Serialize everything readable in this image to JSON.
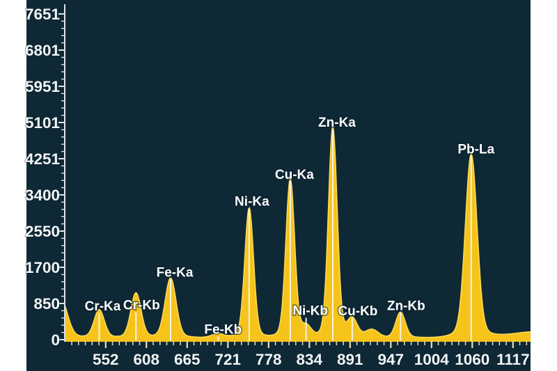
{
  "chart_data": {
    "type": "area",
    "title": "",
    "xlabel": "",
    "ylabel": "",
    "description": "XRF energy spectrum with labeled element emission peaks (counts vs channel)",
    "x_axis": {
      "tick_labels": [
        "552",
        "608",
        "665",
        "721",
        "778",
        "834",
        "891",
        "947",
        "1004",
        "1060",
        "1117"
      ],
      "tick_values": [
        552,
        608.5,
        665,
        721.5,
        778,
        834.5,
        891,
        947.5,
        1004,
        1060.5,
        1117
      ],
      "visible_range": [
        495,
        1141
      ],
      "minor_divisions_per_major": 6
    },
    "y_axis": {
      "tick_labels": [
        "0",
        "850",
        "1700",
        "2550",
        "3400",
        "4251",
        "5101",
        "5951",
        "6801",
        "7651"
      ],
      "tick_values": [
        0,
        850,
        1700,
        2550,
        3400,
        4250,
        5100,
        5950,
        6800,
        7650
      ],
      "range": [
        0,
        7651
      ],
      "minor_step": 170
    },
    "grid": false,
    "legend": false,
    "baseline_counts": 50,
    "peaks": [
      {
        "label": "Cr-Ka",
        "channel": 543,
        "counts": 670,
        "sigma": 7,
        "label_dx": 5,
        "label_dy": -6
      },
      {
        "label": "Cr-Kb",
        "channel": 594,
        "counts": 1050,
        "sigma": 7,
        "label_dx": 8,
        "label_dy": 17
      },
      {
        "label": "Fe-Ka",
        "channel": 642,
        "counts": 1380,
        "sigma": 7.5,
        "label_dx": 6,
        "label_dy": -9
      },
      {
        "label": "Fe-Kb",
        "channel": 708,
        "counts": 140,
        "sigma": 9,
        "label_dx": 7,
        "label_dy": -7
      },
      {
        "label": "Ni-Ka",
        "channel": 751,
        "counts": 2950,
        "sigma": 6,
        "label_dx": 4,
        "label_dy": -10
      },
      {
        "label": "Cu-Ka",
        "channel": 808,
        "counts": 3600,
        "sigma": 6,
        "label_dx": 6,
        "label_dy": -7
      },
      {
        "label": "Ni-Kb",
        "channel": 830,
        "counts": 310,
        "sigma": 7,
        "label_dx": 6,
        "label_dy": -19
      },
      {
        "label": "Zn-Ka",
        "channel": 867,
        "counts": 4760,
        "sigma": 6,
        "label_dx": 6,
        "label_dy": -7
      },
      {
        "label": "Cu-Kb",
        "channel": 894,
        "counts": 470,
        "sigma": 7,
        "label_dx": 8,
        "label_dy": -9
      },
      {
        "label": "Zn-Kb",
        "channel": 961,
        "counts": 620,
        "sigma": 6.5,
        "label_dx": 8,
        "label_dy": -10
      },
      {
        "label": "Pb-La",
        "channel": 1059,
        "counts": 4150,
        "sigma": 8,
        "label_dx": 7,
        "label_dy": -8
      }
    ],
    "unlabeled_features": [
      {
        "label": "",
        "channel": 490,
        "counts": 900,
        "sigma": 9
      },
      {
        "label": "",
        "channel": 921,
        "counts": 240,
        "sigma": 9
      },
      {
        "label": "",
        "channel": 1150,
        "counts": 190,
        "sigma": 35
      }
    ],
    "colors": {
      "panel_background": "#0e2836",
      "page_background": "#ffffff",
      "spectrum_fill": "#f5c31a",
      "spectrum_edge": "#ffd952",
      "peak_marker": "#fafafa",
      "x_tick": "#ecdfae",
      "y_tick": "#dde4e8",
      "text": "#ffffff"
    }
  }
}
